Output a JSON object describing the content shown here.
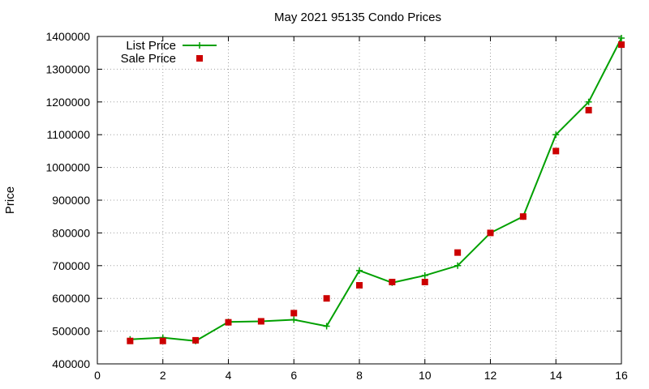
{
  "chart_data": {
    "type": "line",
    "title": "May 2021 95135 Condo Prices",
    "xlabel": "",
    "ylabel": "Price",
    "xlim": [
      0,
      16
    ],
    "ylim": [
      400000,
      1400000
    ],
    "x_ticks": [
      0,
      2,
      4,
      6,
      8,
      10,
      12,
      14,
      16
    ],
    "y_ticks": [
      400000,
      500000,
      600000,
      700000,
      800000,
      900000,
      1000000,
      1100000,
      1200000,
      1300000,
      1400000
    ],
    "grid": true,
    "legend_position": "top-left",
    "series": [
      {
        "name": "List Price",
        "style": "line-with-plus-markers",
        "color": "#00a000",
        "x": [
          1,
          2,
          3,
          4,
          5,
          6,
          7,
          8,
          9,
          10,
          11,
          12,
          13,
          14,
          15,
          16
        ],
        "values": [
          475000,
          480000,
          470000,
          528000,
          530000,
          535000,
          515000,
          685000,
          648000,
          670000,
          700000,
          800000,
          850000,
          1100000,
          1200000,
          1395000
        ]
      },
      {
        "name": "Sale Price",
        "style": "square-markers",
        "color": "#cc0000",
        "x": [
          1,
          2,
          3,
          4,
          5,
          6,
          7,
          8,
          9,
          10,
          11,
          12,
          13,
          14,
          15,
          16
        ],
        "values": [
          470000,
          470000,
          472000,
          527000,
          530000,
          555000,
          600000,
          640000,
          650000,
          650000,
          740000,
          800000,
          850000,
          1050000,
          1175000,
          1375000
        ]
      }
    ]
  }
}
